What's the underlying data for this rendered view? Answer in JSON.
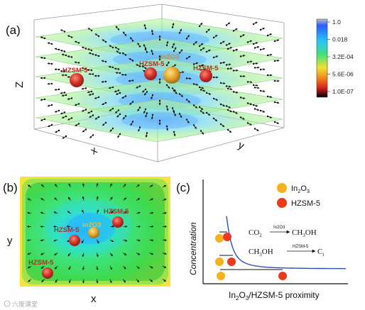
{
  "panel_a": {
    "label": "(a)",
    "axis_z": "Z",
    "axis_x": "x",
    "axis_y": "y",
    "particles": [
      {
        "label": "HZSM-5",
        "color": "#d83a32"
      },
      {
        "label": "HZSM-5",
        "color": "#d83a32"
      },
      {
        "label": "In2O3",
        "color": "#e6a930"
      },
      {
        "label": "HZSM-5",
        "color": "#d83a32"
      }
    ],
    "colorbar": {
      "ticks": [
        "1.0",
        "0.018",
        "3.2E-04",
        "5.6E-06",
        "1.0E-07"
      ],
      "colors": [
        "#b8b8b8",
        "#2060ff",
        "#26c6ff",
        "#3fe07a",
        "#f2e030",
        "#ef7a20",
        "#d81e1e",
        "#000000"
      ]
    }
  },
  "panel_b": {
    "label": "(b)",
    "axis_x": "x",
    "axis_y": "y",
    "particles": [
      {
        "label": "HZSM-5",
        "color": "#d83a32"
      },
      {
        "label": "In2O3",
        "color": "#e6a930"
      },
      {
        "label": "HZSM-5",
        "color": "#d83a32"
      },
      {
        "label": "HZSM-5",
        "color": "#d83a32"
      }
    ]
  },
  "panel_c": {
    "label": "(c)",
    "ylabel": "Concentration",
    "xlabel_parts": [
      "In",
      "2",
      "O",
      "3",
      "/HZSM-5 proximity"
    ],
    "legend": [
      {
        "sub_parts": [
          "In",
          "2",
          "O",
          "3"
        ],
        "color": "#f5b21a"
      },
      {
        "sub_parts": [
          "HZSM-5"
        ],
        "color": "#ea3a1c"
      }
    ],
    "reaction1": {
      "left": "CO",
      "left_sub": "2",
      "catalyst": "In2O3",
      "right": "CH",
      "right_sub": "3",
      "right_tail": "OH"
    },
    "reaction2": {
      "left": "CH",
      "left_sub": "3",
      "left_tail": "OH",
      "catalyst": "HZSM-5",
      "right": "C",
      "right_sub": "i"
    },
    "curve_color": "#2d4fb8"
  },
  "watermark": "六度课堂"
}
